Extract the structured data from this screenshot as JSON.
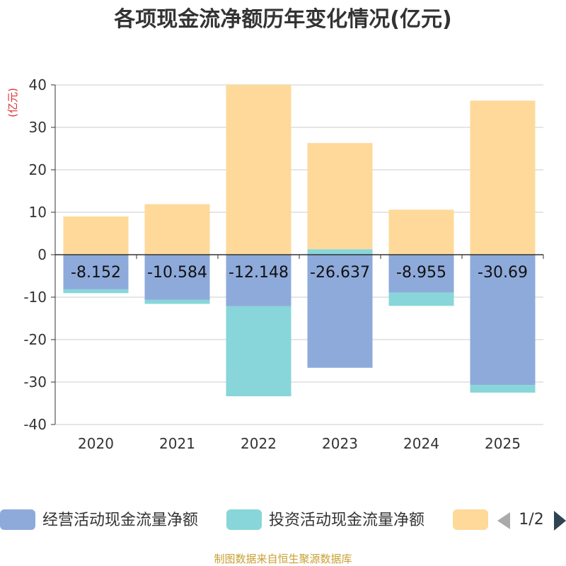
{
  "chart_data": {
    "type": "bar",
    "stacked": true,
    "title": "各项现金流净额历年变化情况(亿元)",
    "ylabel": "(亿元)",
    "xlabel": "",
    "ylim": [
      -40,
      40
    ],
    "yticks": [
      40,
      30,
      20,
      10,
      0,
      -10,
      -20,
      -30,
      -40
    ],
    "grid": true,
    "categories": [
      "2020",
      "2021",
      "2022",
      "2023",
      "2024",
      "2025"
    ],
    "series": [
      {
        "name": "经营活动现金流量净额",
        "color": "#8eaadb",
        "show_labels": true,
        "values": [
          -8.152,
          -10.584,
          -12.148,
          -26.637,
          -8.955,
          -30.69
        ]
      },
      {
        "name": "投资活动现金流量净额",
        "color": "#88d6d9",
        "show_labels": false,
        "values": [
          -0.9,
          -1.0,
          -21.2,
          1.3,
          -3.1,
          -1.8
        ]
      },
      {
        "name": "",
        "color": "#fed99a",
        "show_labels": false,
        "values": [
          9.0,
          11.9,
          40.0,
          25.0,
          10.6,
          36.3
        ]
      }
    ],
    "legend": {
      "position": "bottom",
      "page": "1/2"
    },
    "source": "制图数据来自恒生聚源数据库"
  }
}
